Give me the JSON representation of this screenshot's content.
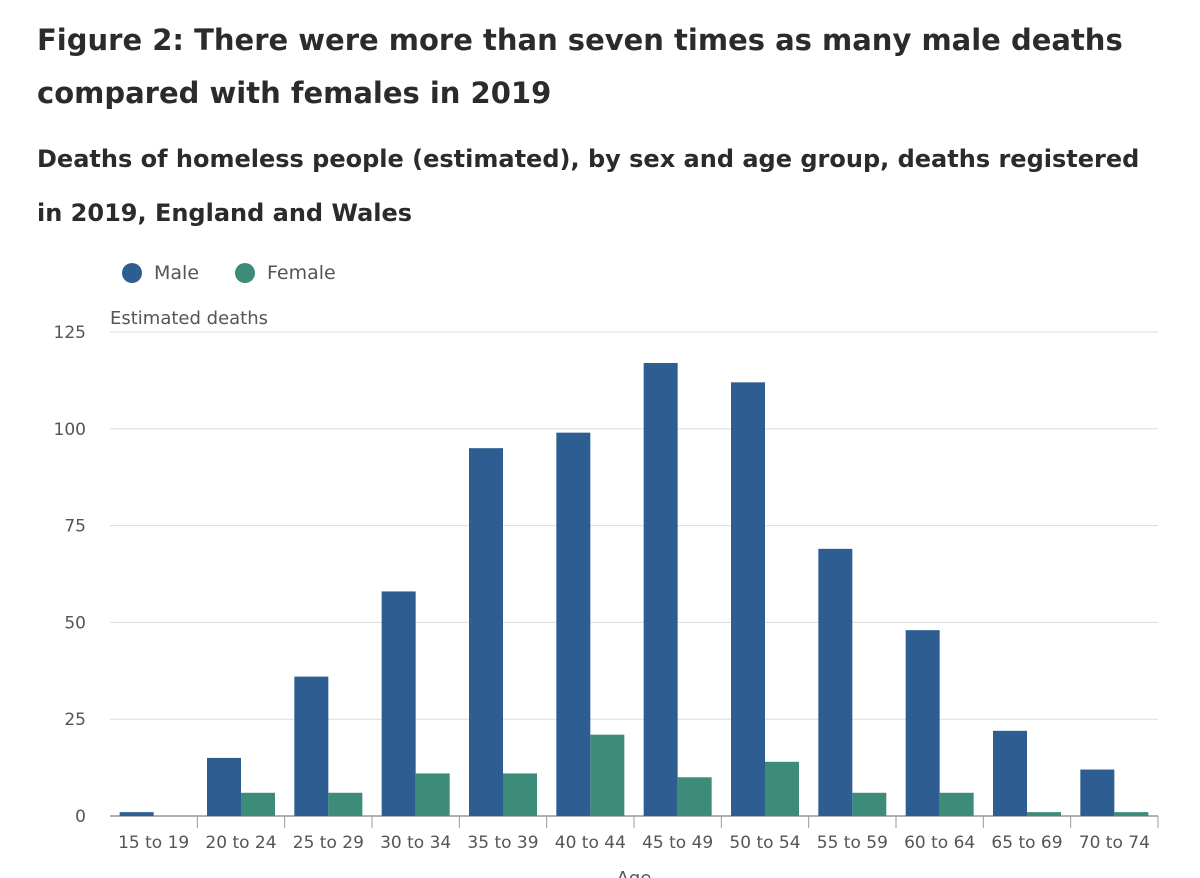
{
  "title": "Figure 2: There were more than seven times as many male deaths compared with females in 2019",
  "subtitle": "Deaths of homeless people (estimated), by sex and age group, deaths registered in 2019, England and Wales",
  "chart_data": {
    "type": "bar",
    "categories": [
      "15 to 19",
      "20 to 24",
      "25 to 29",
      "30 to 34",
      "35 to 39",
      "40 to 44",
      "45 to 49",
      "50 to 54",
      "55 to 59",
      "60 to 64",
      "65 to 69",
      "70 to 74"
    ],
    "series": [
      {
        "name": "Male",
        "color": "#2e5e91",
        "values": [
          1,
          15,
          36,
          58,
          95,
          99,
          117,
          112,
          69,
          48,
          22,
          12
        ]
      },
      {
        "name": "Female",
        "color": "#3d8c7a",
        "values": [
          0,
          6,
          6,
          11,
          11,
          21,
          10,
          14,
          6,
          6,
          1,
          1
        ]
      }
    ],
    "ylabel": "Estimated deaths",
    "xlabel": "Age",
    "ylim": [
      0,
      125
    ],
    "yticks": [
      0,
      25,
      50,
      75,
      100,
      125
    ],
    "grid": true,
    "legend_position": "top-left"
  }
}
